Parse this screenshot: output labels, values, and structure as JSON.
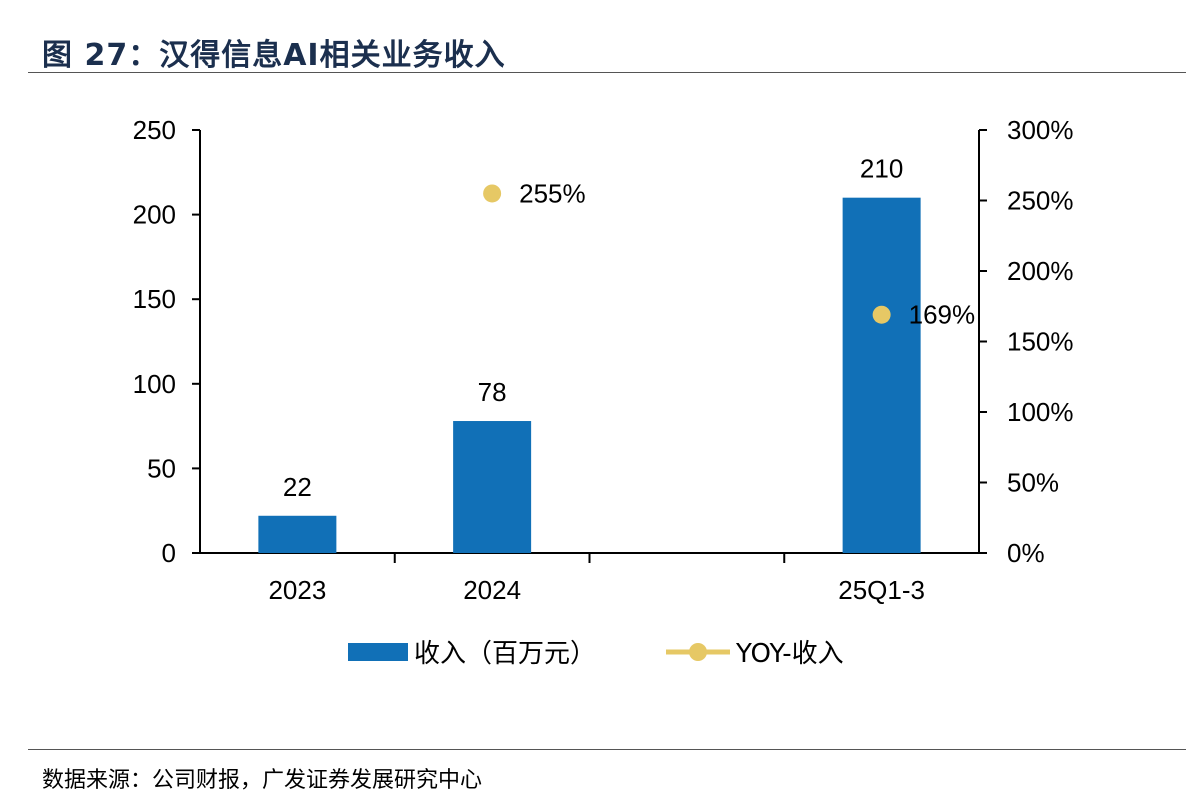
{
  "header": {
    "title": "图 27：汉得信息AI相关业务收入"
  },
  "footer": {
    "source": "数据来源：公司财报，广发证券发展研究中心"
  },
  "chart_data": {
    "type": "bar",
    "title": "图 27：汉得信息AI相关业务收入",
    "categories": [
      "2023",
      "2024",
      "",
      "25Q1-3"
    ],
    "series": [
      {
        "name": "收入（百万元）",
        "type": "bar",
        "axis": "left",
        "color": "#1170b7",
        "values": [
          22,
          78,
          null,
          210
        ],
        "labels": [
          "22",
          "78",
          "",
          "210"
        ]
      },
      {
        "name": "YOY-收入",
        "type": "scatter",
        "axis": "right",
        "color": "#e6c865",
        "values": [
          null,
          2.55,
          null,
          1.69
        ],
        "labels": [
          "",
          "255%",
          "",
          "169%"
        ]
      }
    ],
    "y_left": {
      "min": 0,
      "max": 250,
      "ticks": [
        "0",
        "50",
        "100",
        "150",
        "200",
        "250"
      ]
    },
    "y_right": {
      "min": 0,
      "max": 3.0,
      "ticks": [
        "0%",
        "50%",
        "100%",
        "150%",
        "200%",
        "250%",
        "300%"
      ]
    },
    "legend": {
      "position": "bottom",
      "items": [
        "收入（百万元）",
        "YOY-收入"
      ]
    },
    "grid": false
  }
}
